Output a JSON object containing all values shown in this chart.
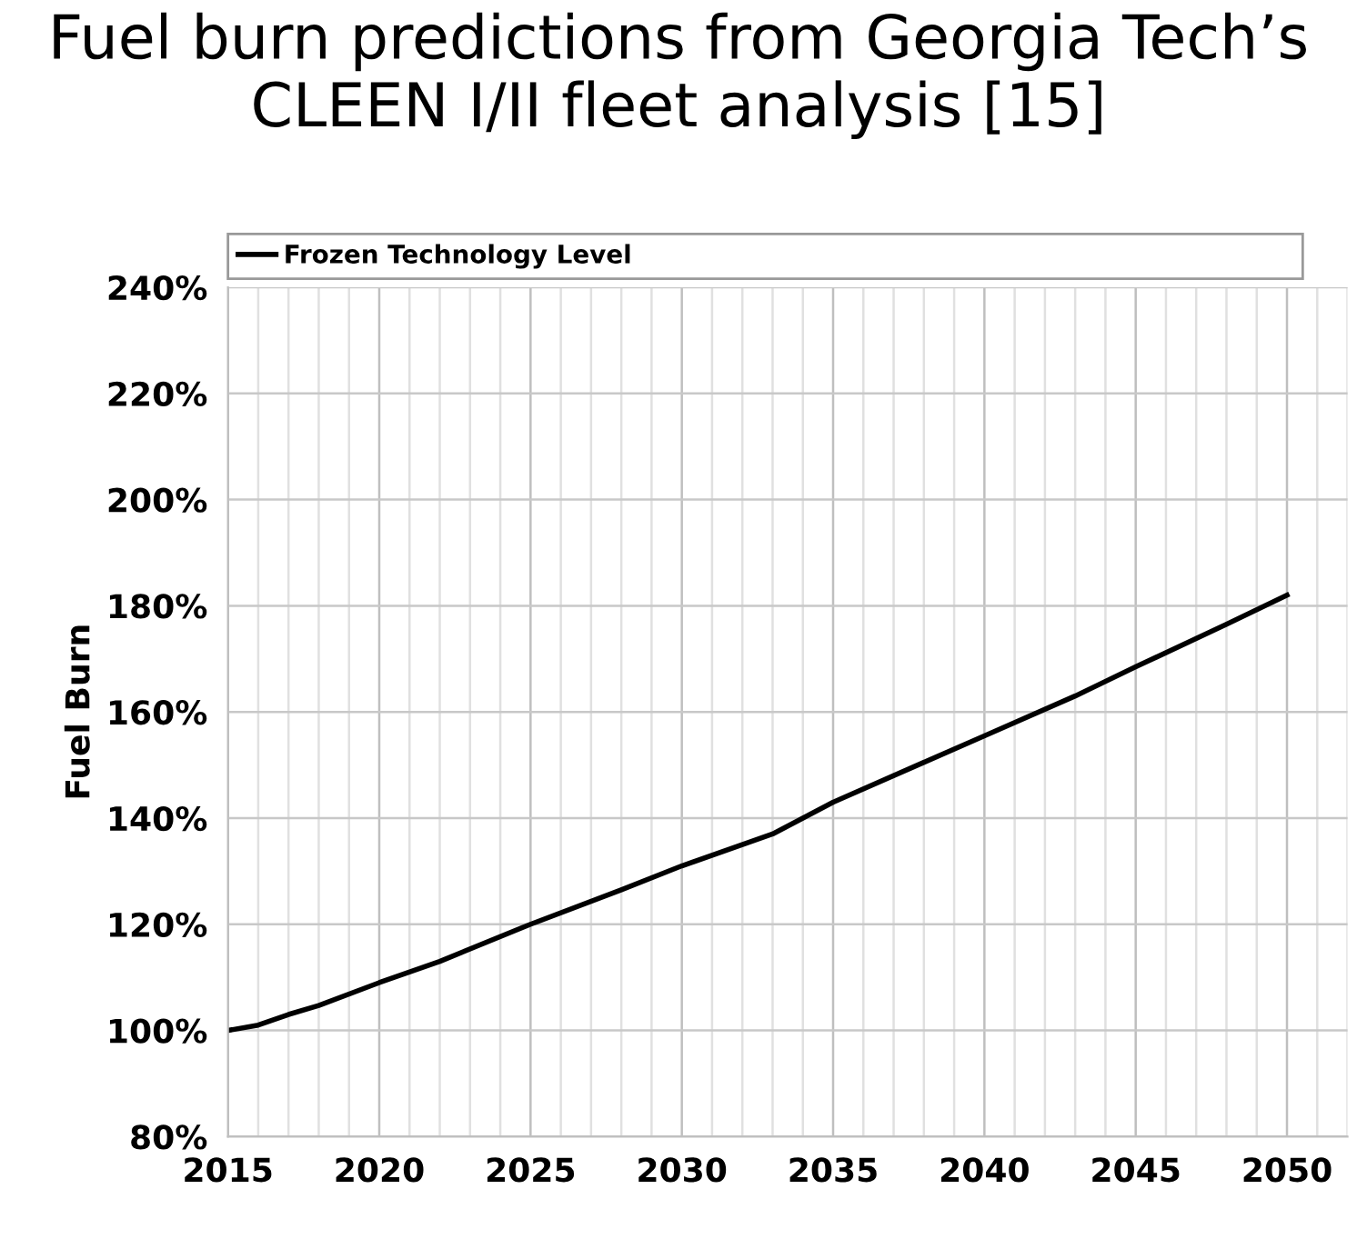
{
  "chart_data": {
    "type": "line",
    "title": "Fuel burn predictions from Georgia Tech’s CLEEN I/II fleet analysis [15]",
    "ylabel": "Fuel Burn",
    "x": [
      2015,
      2016,
      2017,
      2018,
      2020,
      2022,
      2025,
      2028,
      2030,
      2033,
      2035,
      2038,
      2040,
      2043,
      2045,
      2048,
      2050
    ],
    "series": [
      {
        "name": "Frozen Technology Level",
        "color": "#000000",
        "values": [
          100,
          101,
          103,
          104.7,
          109,
          113,
          120,
          126.5,
          131,
          137,
          143,
          150.5,
          155.5,
          163,
          168.5,
          176.5,
          182
        ]
      }
    ],
    "xlim": [
      2015,
      2052
    ],
    "xticks": [
      2015,
      2020,
      2025,
      2030,
      2035,
      2040,
      2045,
      2050
    ],
    "ylim": [
      80,
      240
    ],
    "yticks": [
      {
        "value": 80,
        "label": "80%"
      },
      {
        "value": 100,
        "label": "100%"
      },
      {
        "value": 120,
        "label": "120%"
      },
      {
        "value": 140,
        "label": "140%"
      },
      {
        "value": 160,
        "label": "160%"
      },
      {
        "value": 180,
        "label": "180%"
      },
      {
        "value": 200,
        "label": "200%"
      },
      {
        "value": 220,
        "label": "220%"
      },
      {
        "value": 240,
        "label": "240%"
      }
    ],
    "grid": true,
    "legend": "top",
    "marker": "none",
    "line_style": "solid"
  }
}
